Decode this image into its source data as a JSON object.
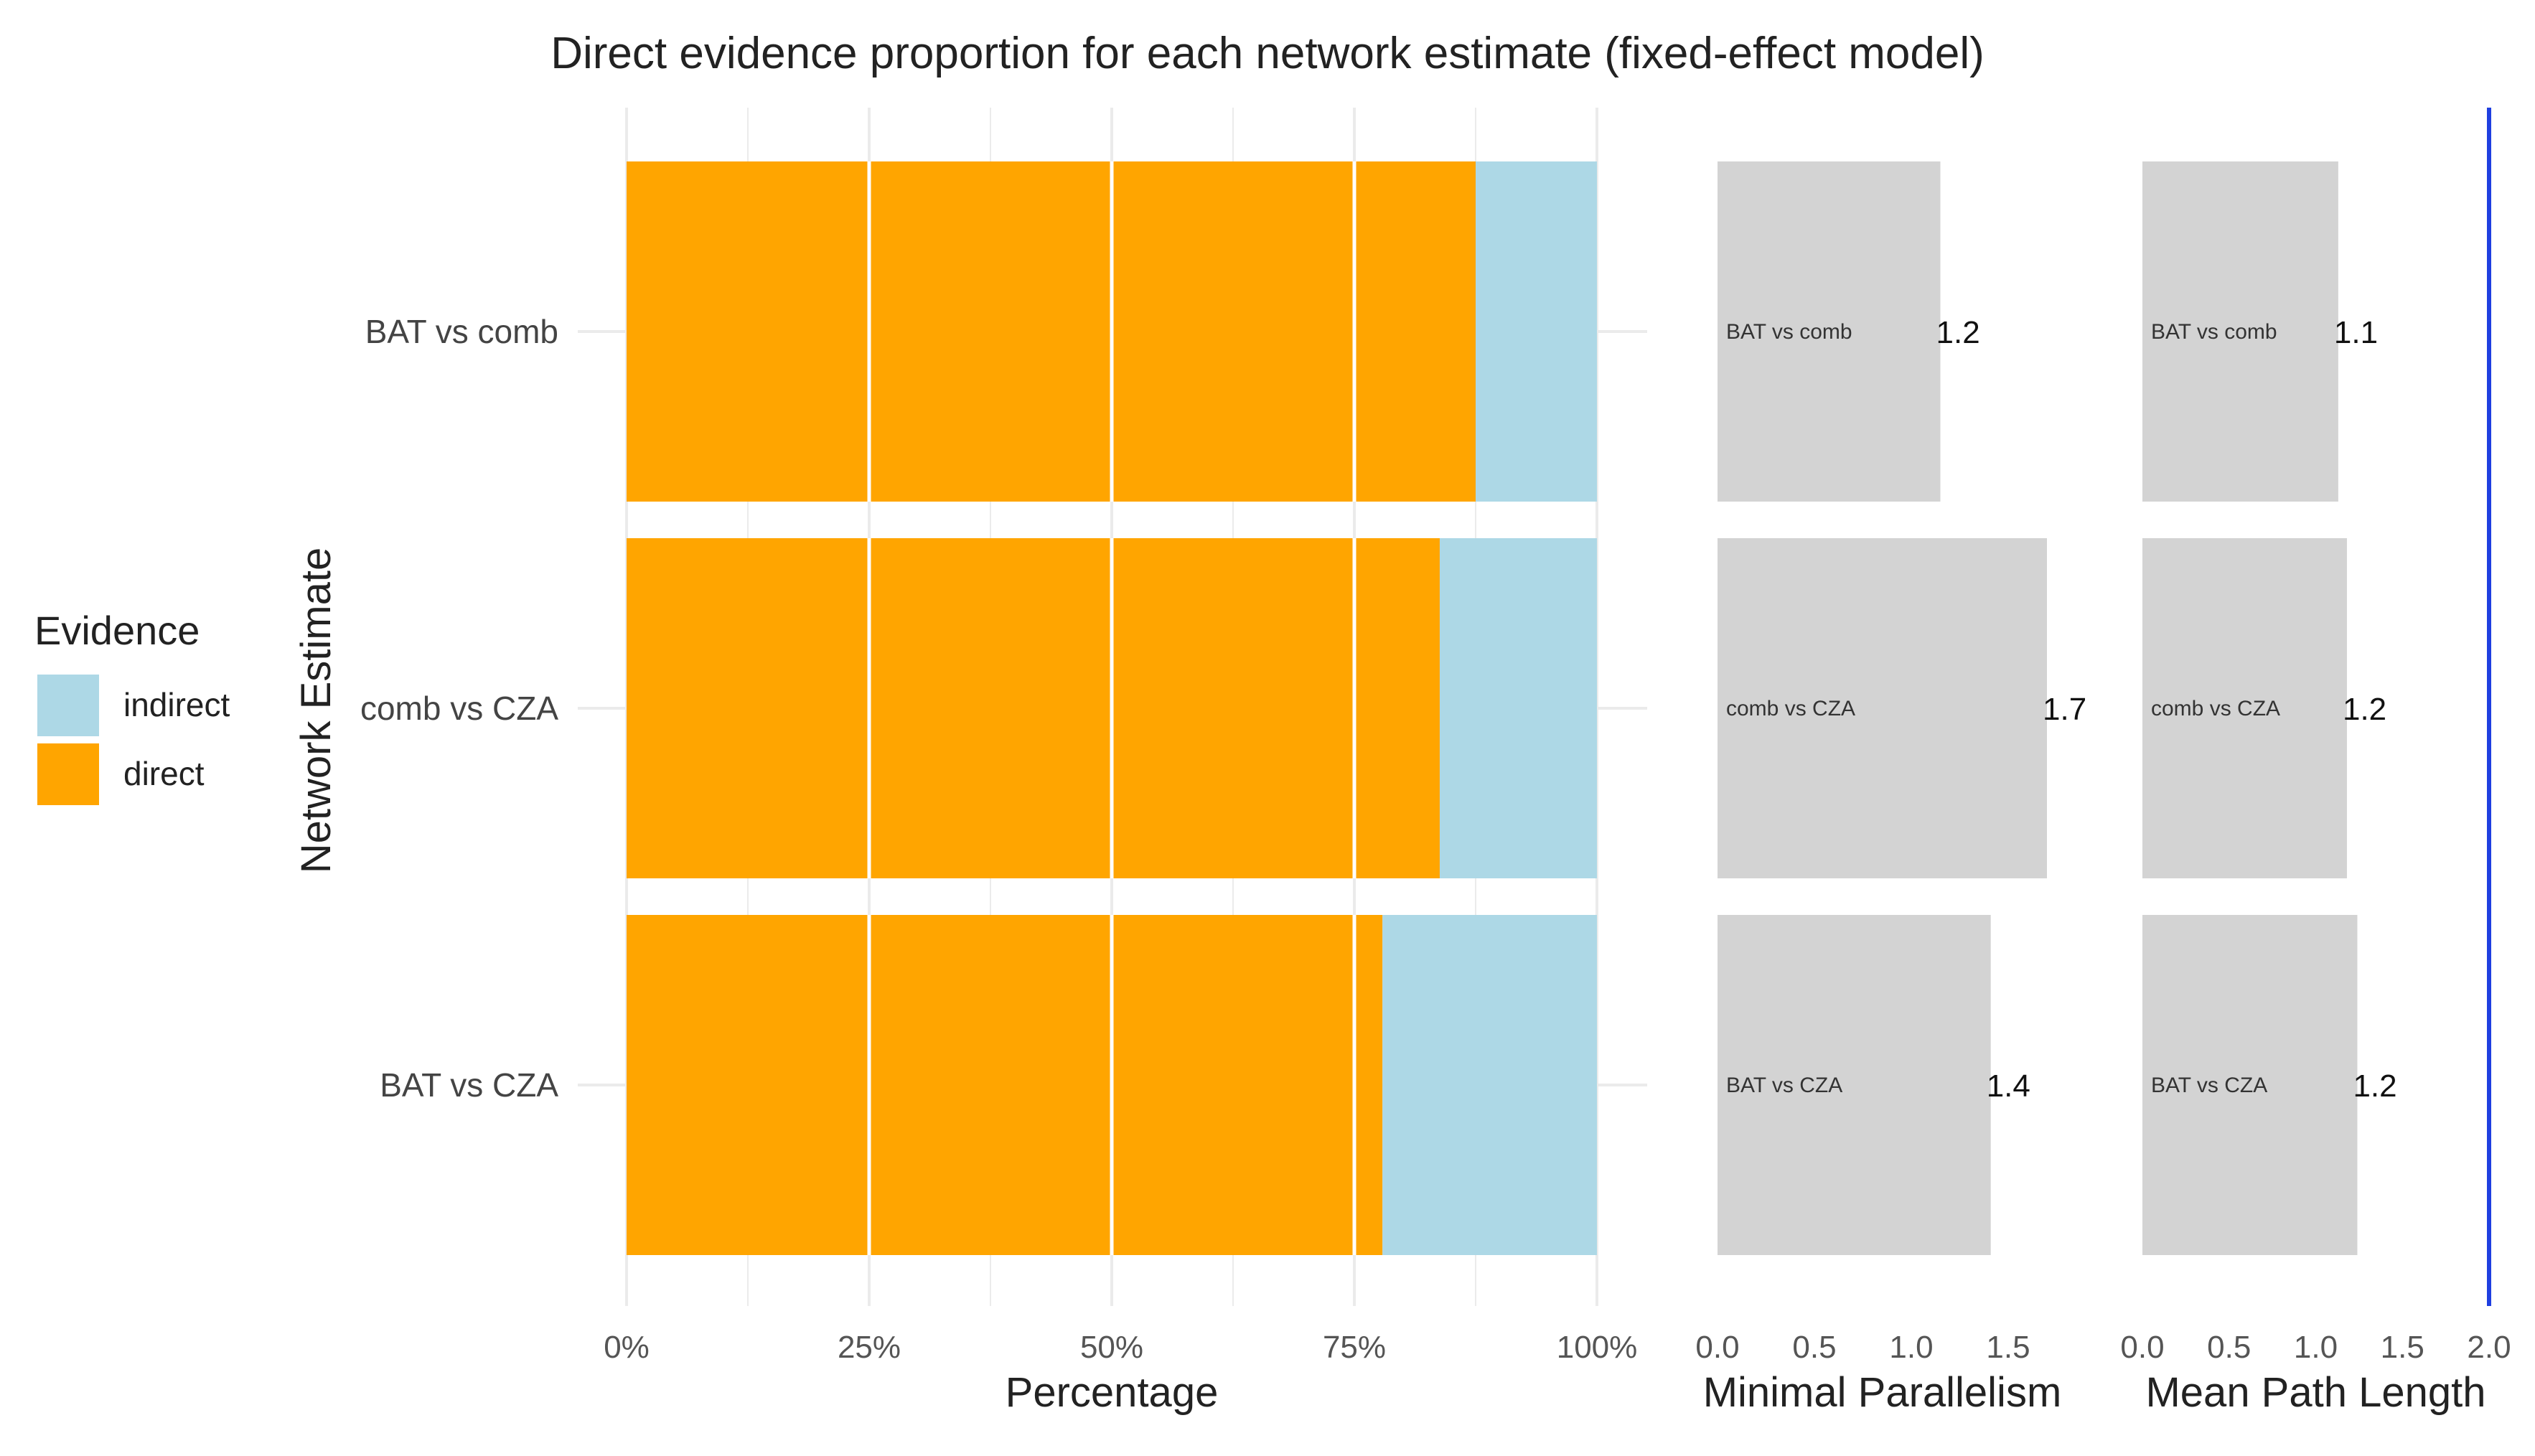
{
  "chart_data": {
    "type": "bar",
    "title": "Direct evidence proportion for each network estimate (fixed-effect model)",
    "ylabel": "Network Estimate",
    "categories": [
      "BAT vs comb",
      "comb vs CZA",
      "BAT vs CZA"
    ],
    "legend": {
      "title": "Evidence",
      "position": "left",
      "entries": [
        {
          "name": "indirect",
          "color": "#ADD8E6"
        },
        {
          "name": "direct",
          "color": "#FFA500"
        }
      ]
    },
    "panels": [
      {
        "id": "percentage",
        "type": "stacked-bar-horizontal",
        "xlabel": "Percentage",
        "xlim": [
          0,
          100
        ],
        "ticks": [
          "0%",
          "25%",
          "50%",
          "75%",
          "100%"
        ],
        "tick_values": [
          0,
          25,
          50,
          75,
          100
        ],
        "series": [
          {
            "name": "direct",
            "values": [
              87.5,
              83.8,
              77.9
            ]
          },
          {
            "name": "indirect",
            "values": [
              12.5,
              16.2,
              22.1
            ]
          }
        ]
      },
      {
        "id": "minimal-parallelism",
        "type": "bar-horizontal",
        "xlabel": "Minimal Parallelism",
        "xlim": [
          0,
          1.7
        ],
        "ticks": [
          "0.0",
          "0.5",
          "1.0",
          "1.5"
        ],
        "tick_values": [
          0,
          0.5,
          1.0,
          1.5
        ],
        "values": [
          1.15,
          1.7,
          1.41
        ],
        "value_labels": [
          "1.2",
          "1.7",
          "1.4"
        ],
        "bar_labels": [
          "BAT vs comb",
          "comb vs CZA",
          "BAT vs CZA"
        ]
      },
      {
        "id": "mean-path-length",
        "type": "bar-horizontal",
        "xlabel": "Mean Path Length",
        "xlim": [
          0,
          2.0
        ],
        "ticks": [
          "0.0",
          "0.5",
          "1.0",
          "1.5",
          "2.0"
        ],
        "tick_values": [
          0,
          0.5,
          1.0,
          1.5,
          2.0
        ],
        "values": [
          1.13,
          1.18,
          1.24
        ],
        "value_labels": [
          "1.1",
          "1.2",
          "1.2"
        ],
        "bar_labels": [
          "BAT vs comb",
          "comb vs CZA",
          "BAT vs CZA"
        ],
        "reference_line": {
          "value": 2.0,
          "color": "#1f3fe0"
        }
      }
    ],
    "colors": {
      "direct": "#FFA500",
      "indirect": "#ADD8E6",
      "secondary_bar": "#D3D3D3",
      "grid": "#EBEBEB"
    }
  }
}
